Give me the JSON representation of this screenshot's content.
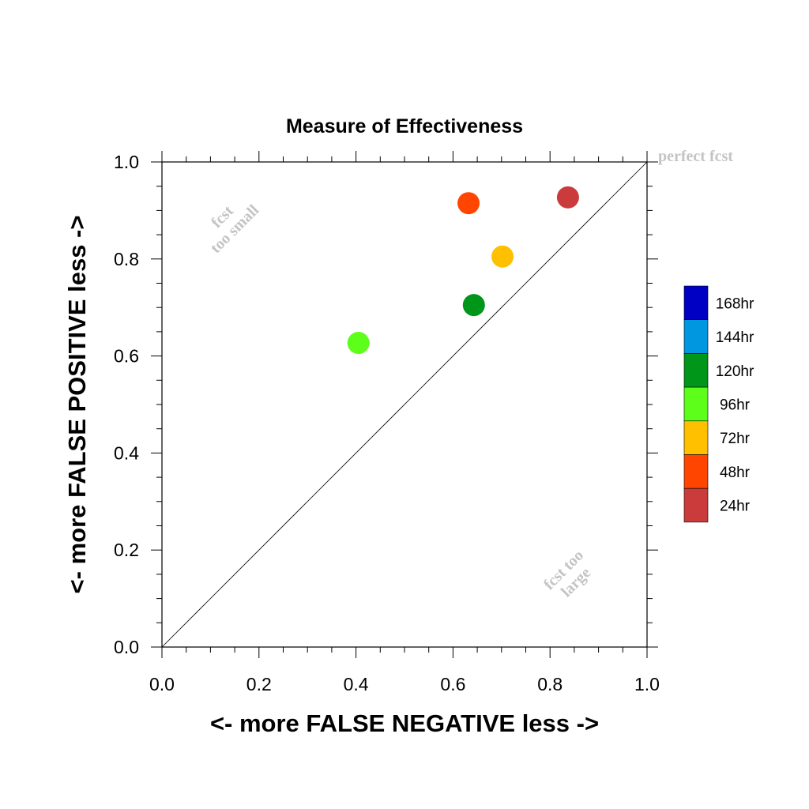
{
  "chart_data": {
    "type": "scatter",
    "title": "Measure of Effectiveness",
    "xlabel": "<- more   FALSE NEGATIVE   less ->",
    "ylabel": "<- more   FALSE POSITIVE   less ->",
    "xlim": [
      0.0,
      1.0
    ],
    "ylim": [
      0.0,
      1.0
    ],
    "xticks": [
      "0.0",
      "0.2",
      "0.4",
      "0.6",
      "0.8",
      "1.0"
    ],
    "yticks": [
      "0.0",
      "0.2",
      "0.4",
      "0.6",
      "0.8",
      "1.0"
    ],
    "grid": false,
    "reference_line": {
      "from": [
        0.0,
        0.0
      ],
      "to": [
        1.0,
        1.0
      ]
    },
    "annotations": {
      "perfect": "perfect fcst",
      "too_small_line1": "fcst",
      "too_small_line2": "too small",
      "too_large_line1": "fcst too",
      "too_large_line2": "large"
    },
    "legend_position": "right",
    "series": [
      {
        "name": "24hr",
        "color": "#cc3b3b",
        "x": 0.837,
        "y": 0.927
      },
      {
        "name": "48hr",
        "color": "#ff4500",
        "x": 0.632,
        "y": 0.915
      },
      {
        "name": "72hr",
        "color": "#ffc000",
        "x": 0.702,
        "y": 0.805
      },
      {
        "name": "96hr",
        "color": "#5dff1a",
        "x": 0.405,
        "y": 0.627
      },
      {
        "name": "120hr",
        "color": "#00961a",
        "x": 0.643,
        "y": 0.705
      }
    ],
    "legend": [
      {
        "name": "168hr",
        "color": "#0000c4"
      },
      {
        "name": "144hr",
        "color": "#0096e0"
      },
      {
        "name": "120hr",
        "color": "#00961a"
      },
      {
        "name": "96hr",
        "color": "#5dff1a"
      },
      {
        "name": "72hr",
        "color": "#ffc000"
      },
      {
        "name": "48hr",
        "color": "#ff4500"
      },
      {
        "name": "24hr",
        "color": "#cc3b3b"
      }
    ]
  }
}
